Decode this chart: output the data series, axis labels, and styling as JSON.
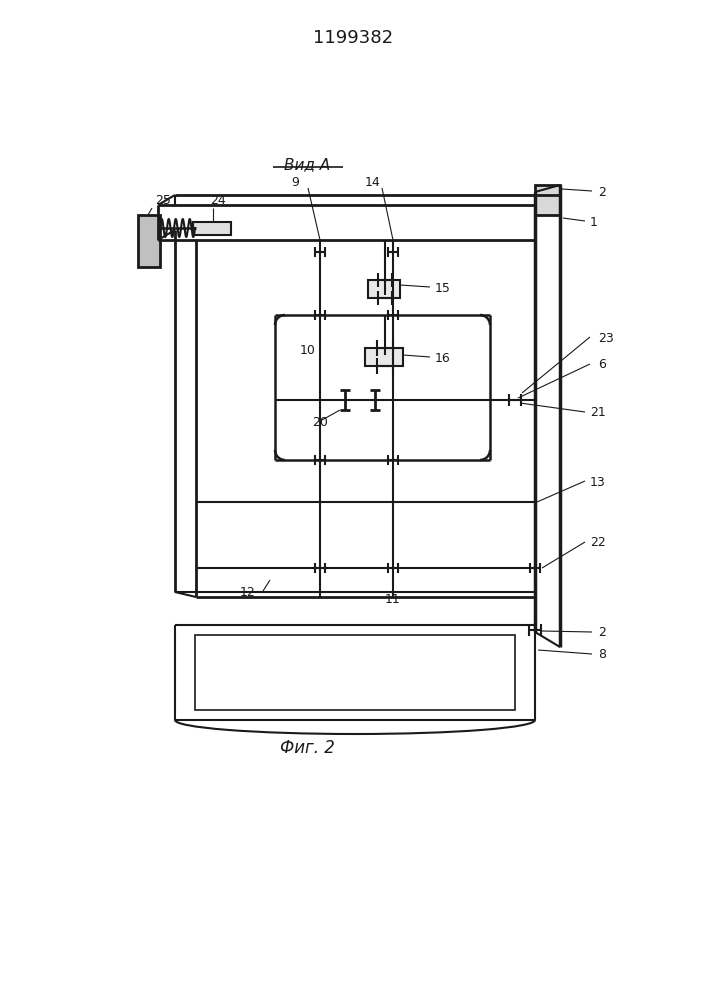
{
  "title": "1199382",
  "caption": "Фиг. 2",
  "view_label": "Вид A",
  "bg_color": "#ffffff",
  "line_color": "#1a1a1a"
}
